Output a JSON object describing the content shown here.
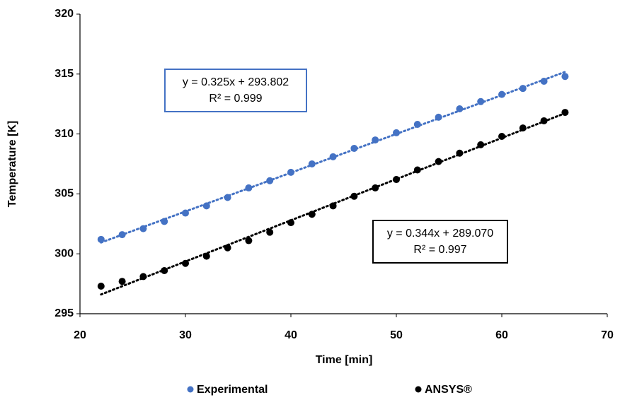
{
  "chart_data": {
    "type": "scatter",
    "xlabel": "Time [min]",
    "ylabel": "Temperature [K]",
    "xlim": [
      20,
      70
    ],
    "xticks": [
      20,
      30,
      40,
      50,
      60,
      70
    ],
    "ylim": [
      295,
      320
    ],
    "yticks": [
      295,
      300,
      305,
      310,
      315,
      320
    ],
    "grid": false,
    "legend": "bottom",
    "series": [
      {
        "name": "Experimental",
        "color": "#4472c4",
        "x": [
          22,
          24,
          26,
          28,
          30,
          32,
          34,
          36,
          38,
          40,
          42,
          44,
          46,
          48,
          50,
          52,
          54,
          56,
          58,
          60,
          62,
          64,
          66
        ],
        "values": [
          301.2,
          301.6,
          302.1,
          302.7,
          303.4,
          304.0,
          304.7,
          305.5,
          306.1,
          306.8,
          307.5,
          308.1,
          308.8,
          309.5,
          310.1,
          310.8,
          311.4,
          312.1,
          312.7,
          313.3,
          313.8,
          314.4,
          314.8
        ],
        "trendline": {
          "equation": "y = 0.325x + 293.802",
          "r2": "R² = 0.999"
        }
      },
      {
        "name": "ANSYS®",
        "color": "#000000",
        "x": [
          22,
          24,
          26,
          28,
          30,
          32,
          34,
          36,
          38,
          40,
          42,
          44,
          46,
          48,
          50,
          52,
          54,
          56,
          58,
          60,
          62,
          64,
          66
        ],
        "values": [
          297.3,
          297.7,
          298.1,
          298.6,
          299.2,
          299.8,
          300.5,
          301.1,
          301.8,
          302.6,
          303.3,
          304.0,
          304.8,
          305.5,
          306.2,
          307.0,
          307.7,
          308.4,
          309.1,
          309.8,
          310.5,
          311.1,
          311.8
        ],
        "trendline": {
          "equation": "y = 0.344x + 289.070",
          "r2": "R² = 0.997"
        }
      }
    ]
  }
}
